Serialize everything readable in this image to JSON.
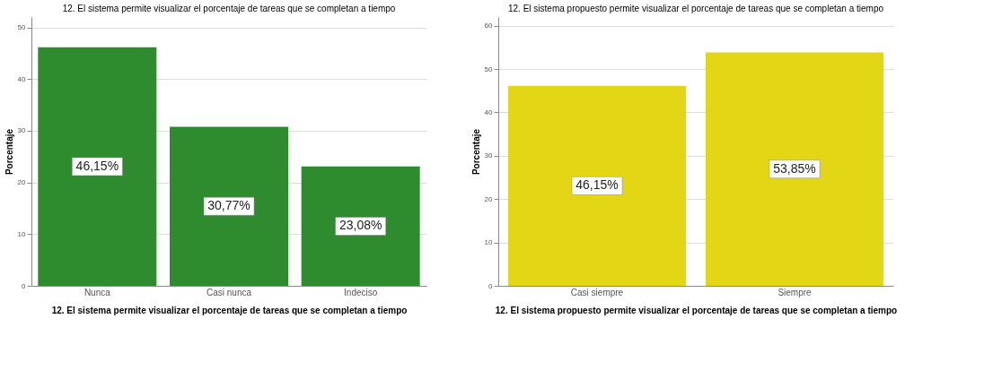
{
  "chart_data": [
    {
      "type": "bar",
      "title": "12. El sistema permite visualizar el porcentaje de tareas que se completan a tiempo",
      "xlabel": "12. El sistema permite visualizar el porcentaje de tareas que se completan a tiempo",
      "ylabel": "Porcentaje",
      "categories": [
        "Nunca",
        "Casi nunca",
        "Indeciso"
      ],
      "values": [
        46.15,
        30.77,
        23.08
      ],
      "color": "#2e8b2e",
      "value_labels": [
        "46,15%",
        "30,77%",
        "23,08%"
      ],
      "ylim": [
        0,
        52
      ],
      "yticks": [
        0,
        10,
        20,
        30,
        40,
        50
      ],
      "grid": "y"
    },
    {
      "type": "bar",
      "title": "12. El sistema propuesto permite visualizar el porcentaje de tareas que se completan a tiempo",
      "xlabel": "12. El sistema propuesto permite visualizar el porcentaje de tareas que se completan a tiempo",
      "ylabel": "Porcentaje",
      "categories": [
        "Casi siempre",
        "Siempre"
      ],
      "values": [
        46.15,
        53.85
      ],
      "color": "#e3d614",
      "value_labels": [
        "46,15%",
        "53,85%"
      ],
      "ylim": [
        0,
        62
      ],
      "yticks": [
        0,
        10,
        20,
        30,
        40,
        50,
        60
      ],
      "grid": "y"
    }
  ]
}
